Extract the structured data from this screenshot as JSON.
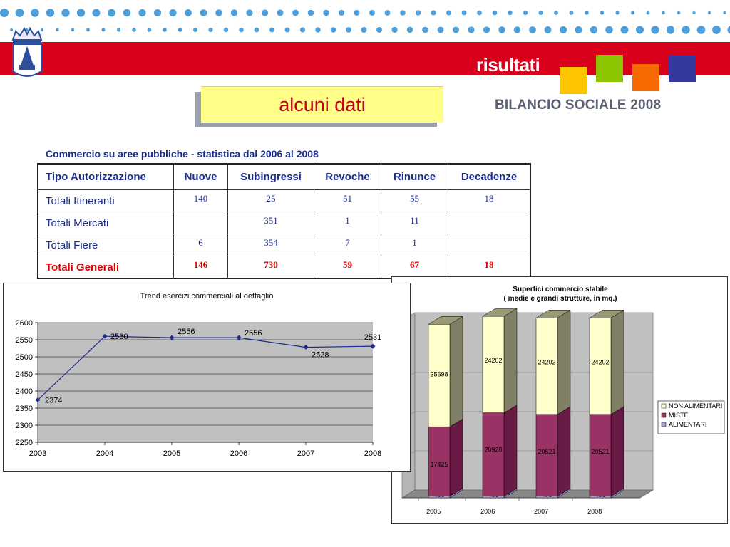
{
  "header": {
    "section_title": "risultati",
    "subtitle": "alcuni dati",
    "report_title": "BILANCIO SOCIALE 2008",
    "band_color": "#d9001b",
    "square_colors": [
      "#fdc600",
      "#8cc400",
      "#f66800",
      "#35389c"
    ],
    "logo_icon": "city-crest-icon"
  },
  "table": {
    "caption": "Commercio su aree pubbliche - statistica dal 2006 al 2008",
    "headers": [
      "Tipo Autorizzazione",
      "Nuove",
      "Subingressi",
      "Revoche",
      "Rinunce",
      "Decadenze"
    ],
    "rows": [
      {
        "label": "Totali Itineranti",
        "values": [
          "140",
          "25",
          "51",
          "55",
          "18"
        ]
      },
      {
        "label": "Totali Mercati",
        "values": [
          "",
          "351",
          "1",
          "11",
          ""
        ]
      },
      {
        "label": "Totali Fiere",
        "values": [
          "6",
          "354",
          "7",
          "1",
          ""
        ]
      },
      {
        "label": "Totali Generali",
        "values": [
          "146",
          "730",
          "59",
          "67",
          "18"
        ]
      }
    ]
  },
  "chart_data": [
    {
      "type": "line",
      "title": "Trend esercizi commerciali al dettaglio",
      "x": [
        2003,
        2004,
        2005,
        2006,
        2007,
        2008
      ],
      "series": [
        {
          "values": [
            2374,
            2560,
            2556,
            2556,
            2528,
            2531
          ]
        }
      ],
      "ylim": [
        2250,
        2600
      ],
      "yticks": [
        2250,
        2300,
        2350,
        2400,
        2450,
        2500,
        2550,
        2600
      ],
      "grid": true,
      "line_color": "#1c2a8c"
    },
    {
      "type": "bar",
      "stacked": true,
      "three_d": true,
      "title": "Superfici commercio stabile",
      "subtitle": "( medie e grandi strutture, in mq.)",
      "categories": [
        "2005",
        "2006",
        "2007",
        "2008"
      ],
      "series": [
        {
          "name": "ALIMENTARI",
          "values": [
            400,
            400,
            400,
            400
          ],
          "color": "#9ba0d8"
        },
        {
          "name": "MISTE",
          "values": [
            17425,
            20920,
            20521,
            20521
          ],
          "color": "#993366"
        },
        {
          "name": "NON ALIMENTARI",
          "values": [
            25698,
            24202,
            24202,
            24202
          ],
          "color": "#ffffcc"
        }
      ],
      "legend_position": "right",
      "legend_order": [
        "NON ALIMENTARI",
        "MISTE",
        "ALIMENTARI"
      ]
    }
  ]
}
